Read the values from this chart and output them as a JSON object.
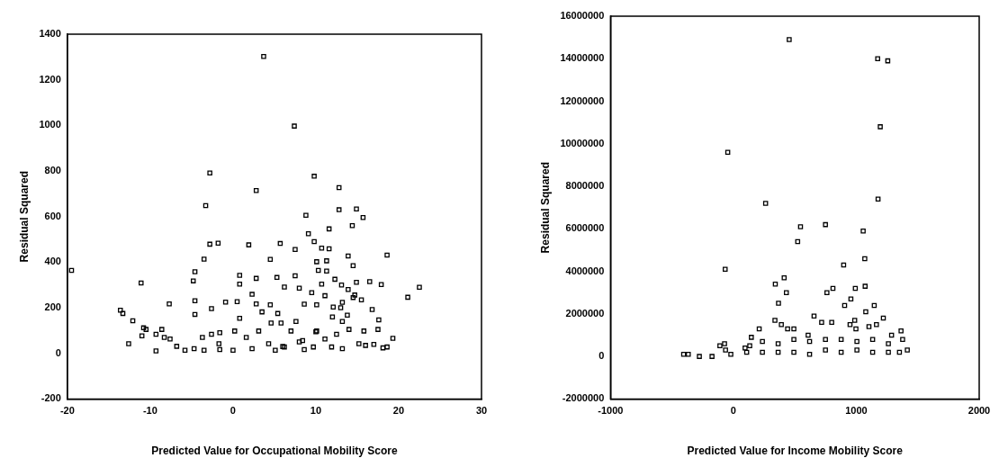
{
  "chart_data": [
    {
      "type": "scatter",
      "xlabel": "Predicted Value for Occupational Mobility Score",
      "ylabel": "Residual Squared",
      "xlim": [
        -20,
        30
      ],
      "ylim": [
        -200,
        1400
      ],
      "xticks": [
        -20,
        -10,
        0,
        10,
        20,
        30
      ],
      "yticks": [
        -200,
        0,
        200,
        400,
        600,
        800,
        1000,
        1200,
        1400
      ],
      "marker": "square",
      "series": [
        {
          "color": "#000000",
          "x": [
            -19.5,
            3.7,
            7.4,
            -2.8,
            9.8,
            2.8,
            12.8,
            -3.3,
            12.8,
            14.9,
            15.7,
            8.8,
            11.6,
            14.4,
            9.1,
            -2.8,
            -1.8,
            1.9,
            5.7,
            7.5,
            9.8,
            10.7,
            11.6,
            -3.5,
            4.5,
            10.1,
            11.3,
            13.9,
            18.6,
            14.5,
            -4.6,
            -4.8,
            -11.1,
            0.8,
            0.8,
            2.8,
            5.3,
            7.5,
            10.3,
            11.3,
            10.7,
            12.3,
            13.1,
            14.9,
            16.5,
            17.9,
            22.5,
            21.1,
            13.9,
            6.2,
            8.0,
            9.5,
            11.1,
            14.7,
            13.2,
            15.5,
            16.8,
            2.3,
            -7.7,
            -4.6,
            -0.9,
            0.5,
            -2.6,
            2.8,
            4.5,
            8.6,
            10.1,
            12.1,
            -4.6,
            3.5,
            5.4,
            -13.6,
            -13.3,
            -12.1,
            -10.8,
            -10.5,
            -11.0,
            -8.6,
            -9.3,
            -8.3,
            -7.6,
            -12.6,
            -9.3,
            -6.8,
            -5.8,
            -4.7,
            -3.5,
            -3.7,
            -2.6,
            -1.6,
            -1.7,
            0,
            0.8,
            0.2,
            1.6,
            3.1,
            4.3,
            4.6,
            5.8,
            7.0,
            7.6,
            8.4,
            9.7,
            10.1,
            11.1,
            12.5,
            13.2,
            14.0,
            13.8,
            15.2,
            15.8,
            16.0,
            17.0,
            17.6,
            17.5,
            18.1,
            18.6,
            19.3,
            11.9,
            6.2,
            2.3,
            -1.6,
            5.1,
            8.6,
            13.2,
            6,
            8,
            10,
            12,
            13,
            14.5
          ],
          "values": [
            364,
            1302,
            997,
            791,
            777,
            714,
            727,
            648,
            630,
            633,
            596,
            606,
            546,
            560,
            525,
            479,
            483,
            476,
            482,
            456,
            490,
            462,
            459,
            413,
            412,
            402,
            406,
            427,
            431,
            385,
            358,
            318,
            309,
            342,
            304,
            329,
            333,
            340,
            364,
            361,
            304,
            325,
            300,
            312,
            315,
            302,
            290,
            246,
            280,
            291,
            286,
            266,
            253,
            256,
            224,
            235,
            192,
            259,
            217,
            231,
            225,
            227,
            196,
            217,
            213,
            216,
            213,
            203,
            171,
            182,
            175,
            189,
            175,
            143,
            112,
            105,
            77,
            105,
            84,
            70,
            63,
            42,
            11,
            31,
            14,
            21,
            14,
            70,
            84,
            91,
            42,
            14,
            154,
            98,
            70,
            98,
            42,
            133,
            133,
            98,
            140,
            56,
            28,
            98,
            63,
            84,
            140,
            105,
            168,
            42,
            98,
            35,
            39,
            147,
            105,
            24,
            28,
            66,
            28,
            28,
            21,
            17,
            14,
            17,
            21,
            30,
            50,
            95,
            160,
            200,
            245
          ]
        }
      ]
    },
    {
      "type": "scatter",
      "xlabel": "Predicted Value for Income Mobility Score",
      "ylabel": "Residual Squared",
      "xlim": [
        -1000,
        2000
      ],
      "ylim": [
        -2000000,
        16000000
      ],
      "xticks": [
        -1000,
        0,
        1000,
        2000
      ],
      "yticks": [
        -2000000,
        0,
        2000000,
        4000000,
        6000000,
        8000000,
        10000000,
        12000000,
        14000000,
        16000000
      ],
      "marker": "square",
      "series": [
        {
          "color": "#000000",
          "x": [
            454,
            1174,
            1256,
            1195,
            -46,
            1177,
            262,
            546,
            749,
            1056,
            523,
            1069,
            897,
            -67,
            413,
            341,
            431,
            761,
            810,
            992,
            1072,
            956,
            367,
            905,
            1077,
            1146,
            1220,
            656,
            800,
            718,
            338,
            390,
            210,
            441,
            492,
            146,
            608,
            987,
            949,
            997,
            1103,
            1164,
            1364,
            1377,
            1287,
            -110,
            -72,
            -64,
            -405,
            -367,
            -277,
            -174,
            95,
            133,
            236,
            364,
            492,
            620,
            749,
            877,
            1005,
            1133,
            1261,
            1415,
            1351,
            -21,
            236,
            492,
            749,
            1005,
            1261,
            108,
            364,
            620,
            877,
            1133
          ],
          "values": [
            14900000,
            14000000,
            13900000,
            10800000,
            9600000,
            7400000,
            7200000,
            6100000,
            6200000,
            5900000,
            5400000,
            4600000,
            4300000,
            4100000,
            3700000,
            3400000,
            3000000,
            3000000,
            3200000,
            3200000,
            3300000,
            2700000,
            2500000,
            2400000,
            2100000,
            2400000,
            1800000,
            1900000,
            1600000,
            1600000,
            1700000,
            1500000,
            1300000,
            1300000,
            1300000,
            900000,
            1000000,
            1700000,
            1500000,
            1300000,
            1400000,
            1500000,
            1200000,
            800000,
            1000000,
            500000,
            600000,
            300000,
            100000,
            100000,
            0,
            0,
            400000,
            500000,
            700000,
            600000,
            800000,
            700000,
            800000,
            800000,
            700000,
            800000,
            600000,
            300000,
            200000,
            100000,
            200000,
            200000,
            300000,
            300000,
            200000,
            200000,
            200000,
            100000,
            200000,
            200000
          ]
        }
      ]
    }
  ]
}
